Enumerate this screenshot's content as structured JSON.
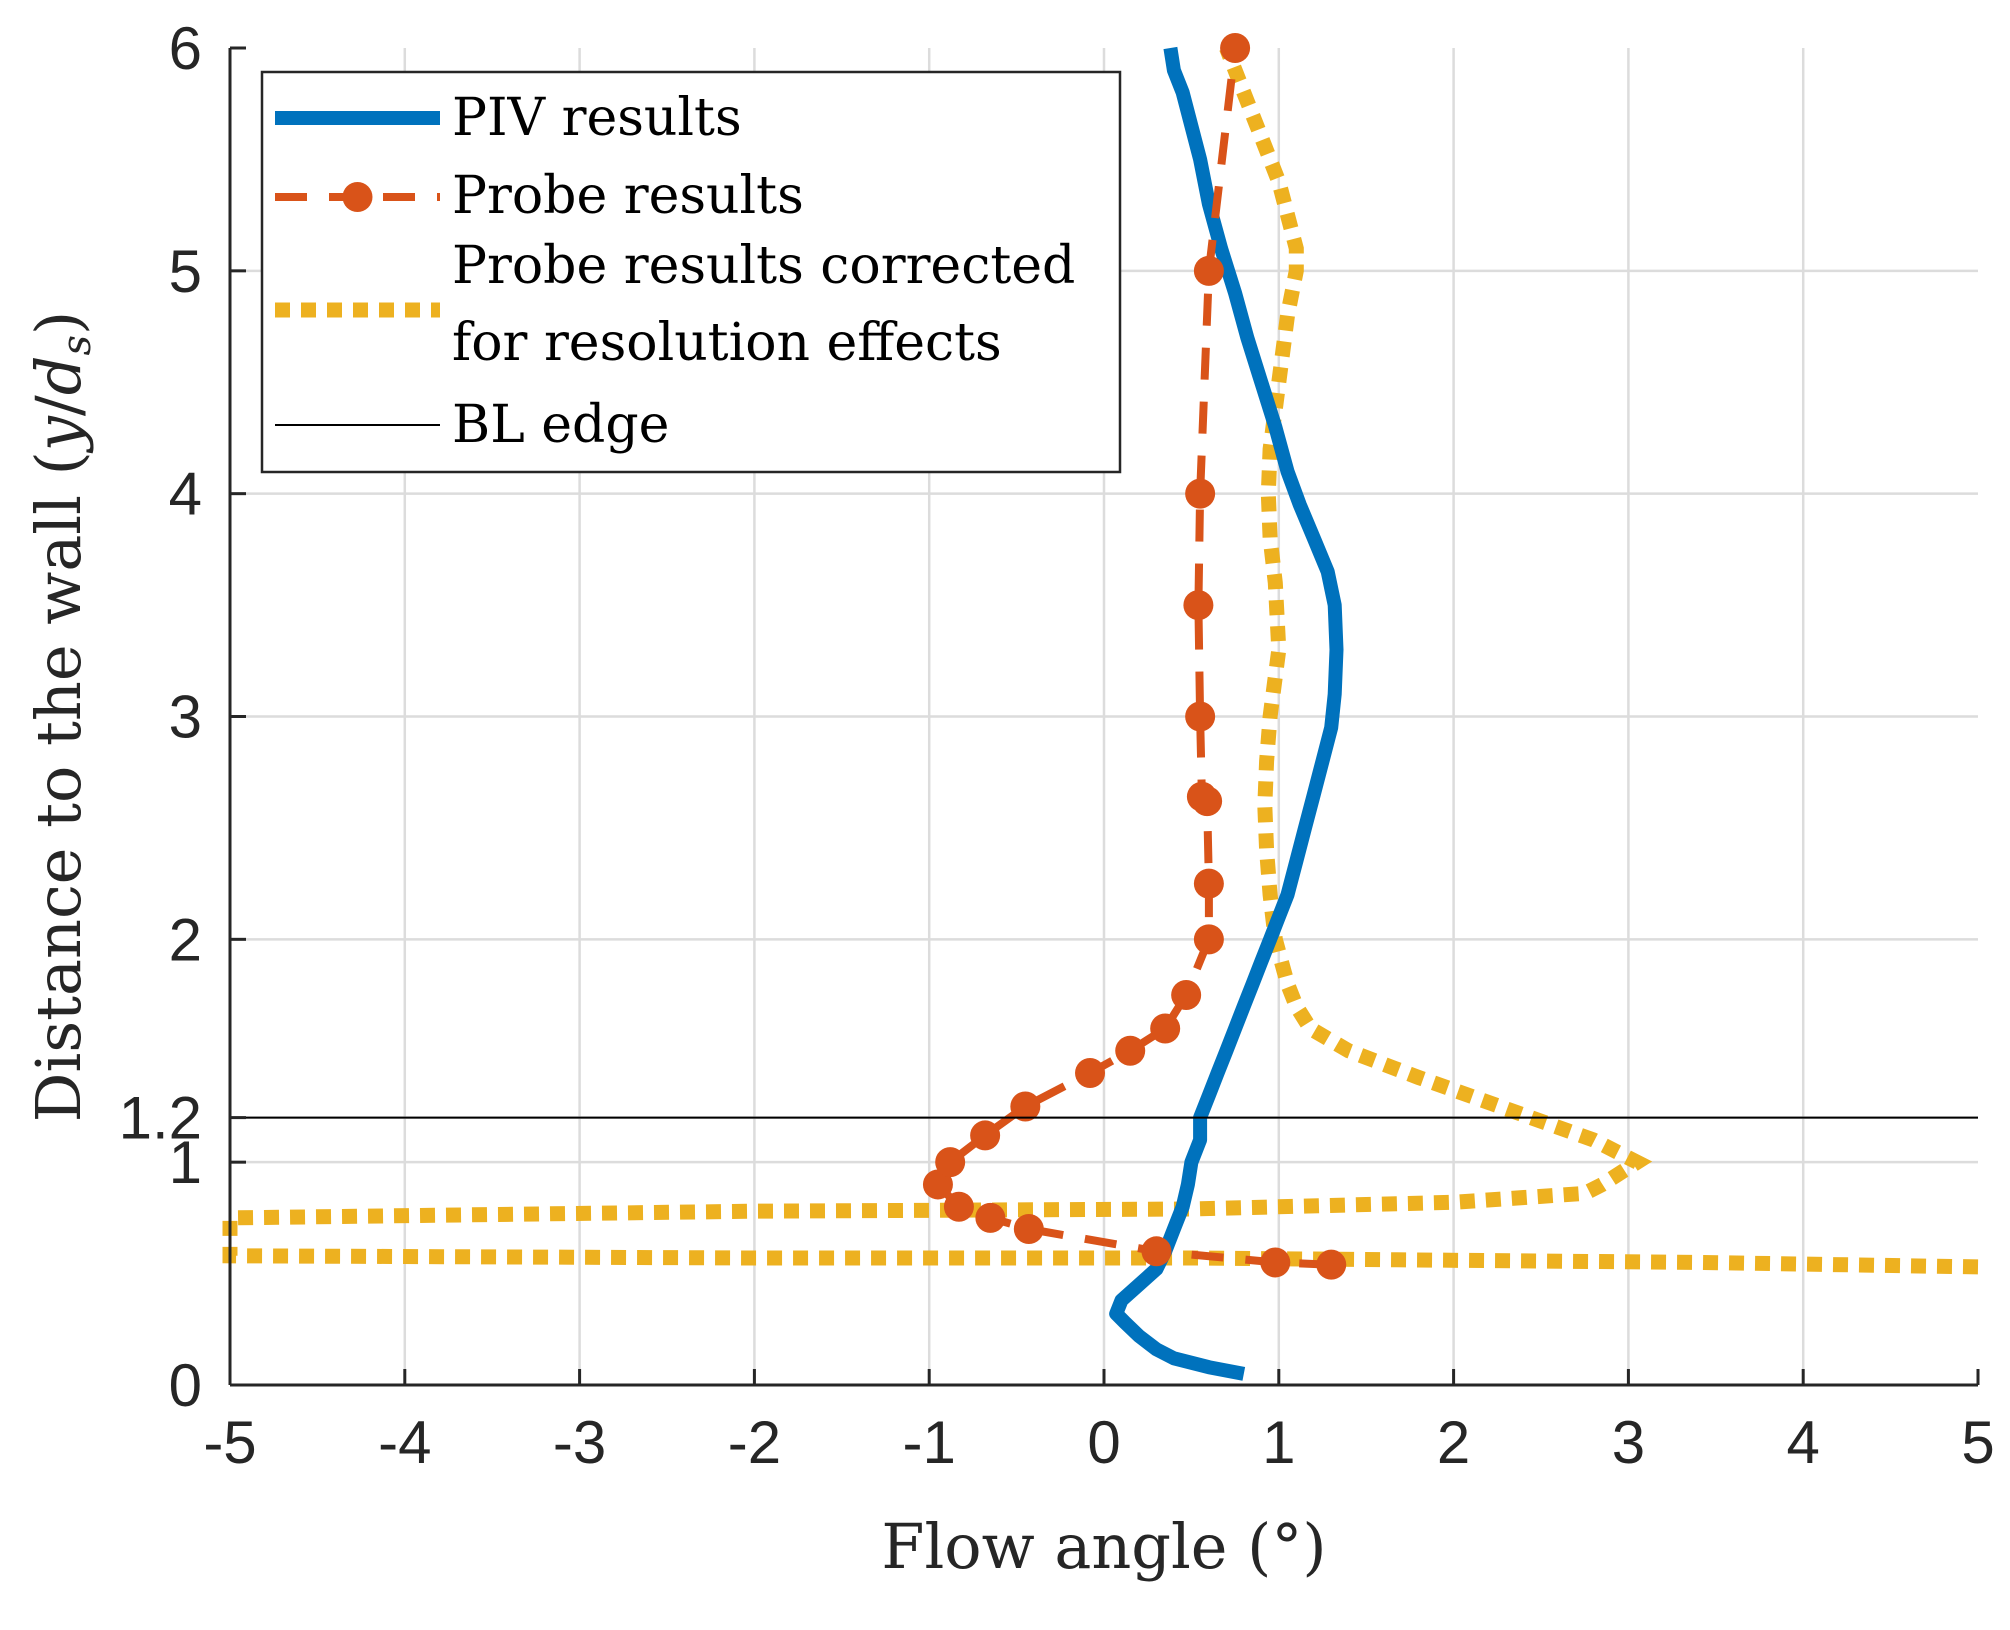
{
  "chart_data": {
    "type": "line",
    "xlabel": "Flow angle (°)",
    "ylabel": "Distance to the wall (y/d_s)",
    "ylabel_main": "Distance to the wall (",
    "ylabel_var_y": "y",
    "ylabel_var_d": "d",
    "ylabel_var_sub": "s",
    "xlim": [
      -5,
      5
    ],
    "ylim": [
      0,
      6
    ],
    "grid": true,
    "legend_position": "top-left",
    "xticks": [
      {
        "value": -5,
        "label": "-5"
      },
      {
        "value": -4,
        "label": "-4"
      },
      {
        "value": -3,
        "label": "-3"
      },
      {
        "value": -2,
        "label": "-2"
      },
      {
        "value": -1,
        "label": "-1"
      },
      {
        "value": 0,
        "label": "0"
      },
      {
        "value": 1,
        "label": "1"
      },
      {
        "value": 2,
        "label": "2"
      },
      {
        "value": 3,
        "label": "3"
      },
      {
        "value": 4,
        "label": "4"
      },
      {
        "value": 5,
        "label": "5"
      }
    ],
    "yticks": [
      {
        "value": 0,
        "label": "0"
      },
      {
        "value": 1,
        "label": "1"
      },
      {
        "value": 1.2,
        "label": "1.2"
      },
      {
        "value": 2,
        "label": "2"
      },
      {
        "value": 3,
        "label": "3"
      },
      {
        "value": 4,
        "label": "4"
      },
      {
        "value": 5,
        "label": "5"
      },
      {
        "value": 6,
        "label": "6"
      }
    ],
    "series": [
      {
        "name": "PIV results",
        "color": "#0072BD",
        "style": "solid",
        "x": [
          0.8,
          0.6,
          0.4,
          0.3,
          0.2,
          0.12,
          0.07,
          0.1,
          0.2,
          0.3,
          0.35,
          0.4,
          0.45,
          0.48,
          0.5,
          0.55,
          0.55,
          0.6,
          0.65,
          0.7,
          0.75,
          0.8,
          0.85,
          0.9,
          0.95,
          1.0,
          1.05,
          1.1,
          1.15,
          1.2,
          1.25,
          1.3,
          1.32,
          1.33,
          1.32,
          1.28,
          1.2,
          1.12,
          1.05,
          0.98,
          0.9,
          0.82,
          0.75,
          0.67,
          0.6,
          0.55,
          0.5,
          0.45,
          0.4,
          0.38
        ],
        "y": [
          0.05,
          0.08,
          0.12,
          0.16,
          0.22,
          0.28,
          0.32,
          0.38,
          0.45,
          0.52,
          0.6,
          0.7,
          0.8,
          0.9,
          1.0,
          1.1,
          1.2,
          1.3,
          1.4,
          1.5,
          1.6,
          1.7,
          1.8,
          1.9,
          2.0,
          2.1,
          2.2,
          2.35,
          2.5,
          2.65,
          2.8,
          2.95,
          3.1,
          3.3,
          3.5,
          3.65,
          3.8,
          3.95,
          4.1,
          4.3,
          4.5,
          4.7,
          4.9,
          5.1,
          5.3,
          5.5,
          5.65,
          5.8,
          5.9,
          6.0
        ]
      },
      {
        "name": "Probe results",
        "color": "#D95319",
        "style": "dashed",
        "markers": true,
        "x": [
          1.3,
          0.98,
          0.3,
          -0.43,
          -0.65,
          -0.83,
          -0.95,
          -0.88,
          -0.68,
          -0.45,
          -0.08,
          0.15,
          0.35,
          0.47,
          0.6,
          0.6,
          0.59,
          0.56,
          0.55,
          0.54,
          0.55,
          0.6,
          0.75
        ],
        "y": [
          0.54,
          0.55,
          0.6,
          0.7,
          0.75,
          0.8,
          0.9,
          1.0,
          1.12,
          1.25,
          1.4,
          1.5,
          1.6,
          1.75,
          2.0,
          2.25,
          2.62,
          2.64,
          3.0,
          3.5,
          4.0,
          5.0,
          6.0
        ]
      },
      {
        "name": "Probe results corrected for resolution effects",
        "name_line1": "Probe results corrected",
        "name_line2": "for resolution effects",
        "color": "#EDB120",
        "style": "dotted",
        "x": [
          5.0,
          3.4,
          0.5,
          -2.0,
          -5.0,
          -5.0,
          -2.0,
          0.5,
          2.0,
          2.75,
          2.85,
          3.05,
          2.8,
          2.3,
          1.8,
          1.4,
          1.18,
          1.1,
          1.05,
          0.98,
          0.95,
          0.93,
          0.92,
          0.93,
          0.95,
          1.0,
          0.98,
          0.95,
          0.94,
          0.95,
          1.0,
          1.05,
          1.1,
          1.1,
          1.0,
          0.8,
          0.7
        ],
        "y": [
          0.53,
          0.55,
          0.57,
          0.57,
          0.58,
          0.75,
          0.78,
          0.79,
          0.82,
          0.86,
          0.9,
          1.0,
          1.1,
          1.24,
          1.38,
          1.5,
          1.6,
          1.7,
          1.8,
          2.0,
          2.2,
          2.4,
          2.6,
          2.8,
          3.0,
          3.3,
          3.6,
          3.8,
          4.0,
          4.2,
          4.5,
          4.8,
          5.0,
          5.1,
          5.4,
          5.8,
          6.0
        ]
      },
      {
        "name": "BL edge",
        "color": "#000000",
        "style": "solid-thin",
        "x": [
          -5,
          5
        ],
        "y": [
          1.2,
          1.2
        ]
      }
    ]
  }
}
